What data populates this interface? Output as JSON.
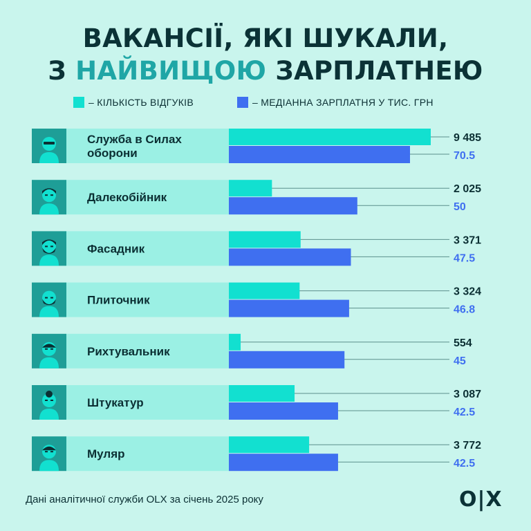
{
  "title": {
    "line1": "ВАКАНСІЇ, ЯКІ ШУКАЛИ,",
    "line2_pre": "З ",
    "line2_highlight": "НАЙВИЩОЮ",
    "line2_post": " ЗАРПЛАТНЕЮ"
  },
  "legend": {
    "responses_label": "– КІЛЬКІСТЬ ВІДГУКІВ",
    "salary_label": "– МЕДІАННА ЗАРПЛАТНЯ У ТИС. ГРН"
  },
  "colors": {
    "responses": "#12e0d0",
    "salary": "#3f6ff0",
    "label_bg": "#9bf0e4",
    "icon_bg": "#1e9e97",
    "salary_text": "#3f6ff0",
    "dark": "#0b2f33"
  },
  "chart_data": {
    "type": "bar",
    "categories": [
      "Служба в Силах оборони",
      "Далекобійник",
      "Фасадник",
      "Плиточник",
      "Рихтувальник",
      "Штукатур",
      "Муляр"
    ],
    "category_lines": [
      [
        "Служба в Силах",
        "оборони"
      ],
      [
        "Далекобійник"
      ],
      [
        "Фасадник"
      ],
      [
        "Плиточник"
      ],
      [
        "Рихтувальник"
      ],
      [
        "Штукатур"
      ],
      [
        "Муляр"
      ]
    ],
    "icons": [
      "soldier-avatar-icon",
      "driver-avatar-icon",
      "bearded-worker-avatar-icon",
      "tiler-avatar-icon",
      "mechanic-avatar-icon",
      "plasterer-avatar-icon",
      "bricklayer-avatar-icon"
    ],
    "series": [
      {
        "name": "Кількість відгуків",
        "values": [
          9485,
          2025,
          3371,
          3324,
          554,
          3087,
          3772
        ],
        "labels": [
          "9 485",
          "2 025",
          "3 371",
          "3 324",
          "554",
          "3 087",
          "3 772"
        ]
      },
      {
        "name": "Медіанна зарплатня у тис. грн",
        "values": [
          70.5,
          50,
          47.5,
          46.8,
          45,
          42.5,
          42.5
        ],
        "labels": [
          "70.5",
          "50",
          "47.5",
          "46.8",
          "45",
          "42.5",
          "42.5"
        ]
      }
    ]
  },
  "footer": {
    "source": "Дані аналітичної служби OLX за січень 2025 року"
  },
  "logo": {
    "text": "O|X"
  }
}
